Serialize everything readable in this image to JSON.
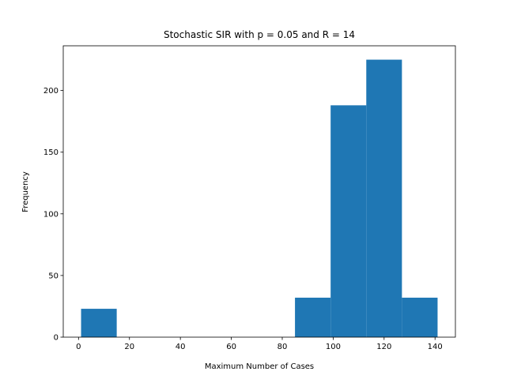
{
  "chart_data": {
    "type": "histogram",
    "title": "Stochastic SIR with p = 0.05 and R = 14",
    "xlabel": "Maximum Number of Cases",
    "ylabel": "Frequency",
    "bins": [
      1,
      15,
      29,
      43,
      57,
      71,
      85,
      99,
      113,
      127,
      141
    ],
    "values": [
      23,
      0,
      0,
      0,
      0,
      0,
      32,
      188,
      225,
      32
    ],
    "color": "#1f77b4",
    "xlim": [
      -6,
      148
    ],
    "xticks": [
      0,
      20,
      40,
      60,
      80,
      100,
      120,
      140
    ],
    "ylim": [
      0,
      236.25
    ],
    "yticks": [
      0,
      50,
      100,
      150,
      200
    ]
  }
}
